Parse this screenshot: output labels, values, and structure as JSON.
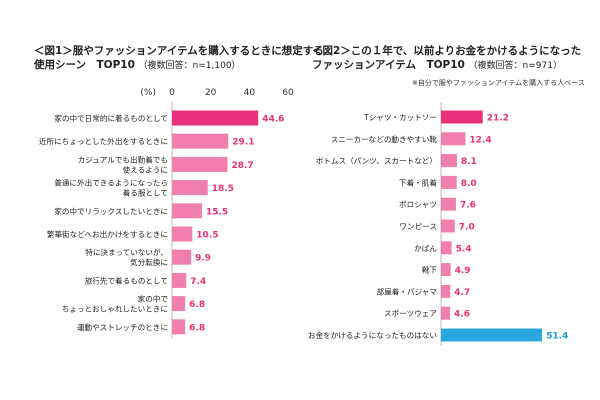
{
  "chart_data": [
    {
      "type": "bar",
      "orientation": "horizontal",
      "title_line1": "＜図1＞服やファッションアイテムを購入するときに想定する",
      "title_line2": "使用シーン　TOP10",
      "subtitle": "（複数回答：n=1,100）",
      "unit_label": "(%)",
      "xlim": [
        0,
        60
      ],
      "ticks": [
        "0",
        "20",
        "40",
        "60"
      ],
      "categories": [
        [
          "家の中で日常的に着るものとして"
        ],
        [
          "近所にちょっとした外出をするときに"
        ],
        [
          "カジュアルでも出勤着でも",
          "使えるように"
        ],
        [
          "普通に外出できるようになったら",
          "着る服として"
        ],
        [
          "家の中でリラックスしたいときに"
        ],
        [
          "繁華街などへお出かけをするときに"
        ],
        [
          "特に決まっていないが、",
          "気分転換に"
        ],
        [
          "旅行先で着るものとして"
        ],
        [
          "家の中で",
          "ちょっとおしゃれしたいときに"
        ],
        [
          "運動やストレッチのときに"
        ]
      ],
      "values": [
        44.6,
        29.1,
        28.7,
        18.5,
        15.5,
        10.5,
        9.9,
        7.4,
        6.8,
        6.8
      ],
      "value_labels": [
        "44.6",
        "29.1",
        "28.7",
        "18.5",
        "15.5",
        "10.5",
        "9.9",
        "7.4",
        "6.8",
        "6.8"
      ],
      "colors": {
        "top": "#e8317a",
        "rest": "#f07fae",
        "label": "#e8317a"
      }
    },
    {
      "type": "bar",
      "orientation": "horizontal",
      "title_line1": "＜図2＞この１年で、以前よりお金をかけるようになった",
      "title_line2": "ファッションアイテム　TOP10",
      "subtitle": "（複数回答：n=971）",
      "note": "※自分で服やファッションアイテムを購入する人ベース",
      "xlim": [
        0,
        60
      ],
      "categories": [
        [
          "Tシャツ・カットソー"
        ],
        [
          "スニーカーなどの動きやすい靴"
        ],
        [
          "ボトムス（パンツ、スカートなど）"
        ],
        [
          "下着・肌着"
        ],
        [
          "ポロシャツ"
        ],
        [
          "ワンピース"
        ],
        [
          "かばん"
        ],
        [
          "靴下"
        ],
        [
          "部屋着・パジャマ"
        ],
        [
          "スポーツウェア"
        ],
        [
          "お金をかけるようになったものはない"
        ]
      ],
      "values": [
        21.2,
        12.4,
        8.1,
        8.0,
        7.6,
        7.0,
        5.4,
        4.9,
        4.7,
        4.6,
        51.4
      ],
      "value_labels": [
        "21.2",
        "12.4",
        "8.1",
        "8.0",
        "7.6",
        "7.0",
        "5.4",
        "4.9",
        "4.7",
        "4.6",
        "51.4"
      ],
      "colors": {
        "top": "#e8317a",
        "rest": "#f07fae",
        "label": "#e8317a",
        "none": "#29a8e0",
        "none_label": "#1a9ad6"
      }
    }
  ]
}
